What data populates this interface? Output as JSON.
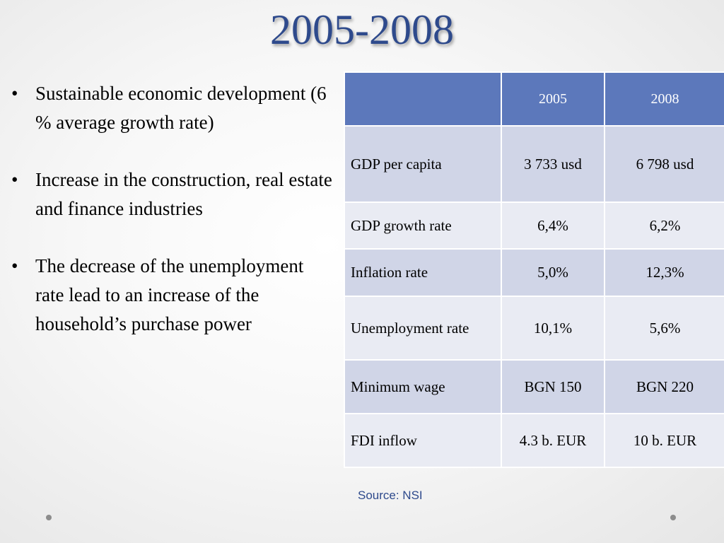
{
  "title": "2005-2008",
  "bullets": [
    "Sustainable economic development (6 % average growth rate)",
    "Increase in the construction, real estate and finance industries",
    "The decrease of the unemployment rate lead to an increase of the household’s purchase power"
  ],
  "bullet_symbol": "•",
  "table": {
    "headers": [
      "",
      "2005",
      "2008"
    ],
    "rows": [
      {
        "label": "GDP per capita",
        "y2005": "3 733 usd",
        "y2008": "6 798 usd"
      },
      {
        "label": "GDP growth rate",
        "y2005": "6,4%",
        "y2008": "6,2%"
      },
      {
        "label": "Inflation rate",
        "y2005": "5,0%",
        "y2008": "12,3%"
      },
      {
        "label": "Unemployment rate",
        "y2005": "10,1%",
        "y2008": "5,6%"
      },
      {
        "label": "Minimum wage",
        "y2005": "BGN 150",
        "y2008": "BGN 220"
      },
      {
        "label": "FDI inflow",
        "y2005": "4.3 b. EUR",
        "y2008": "10 b. EUR"
      }
    ]
  },
  "source": "Source: NSI",
  "colors": {
    "title": "#2e4a8c",
    "table_header": "#5c78bb",
    "row_dark": "#d0d5e7",
    "row_light": "#e9ebf3"
  }
}
